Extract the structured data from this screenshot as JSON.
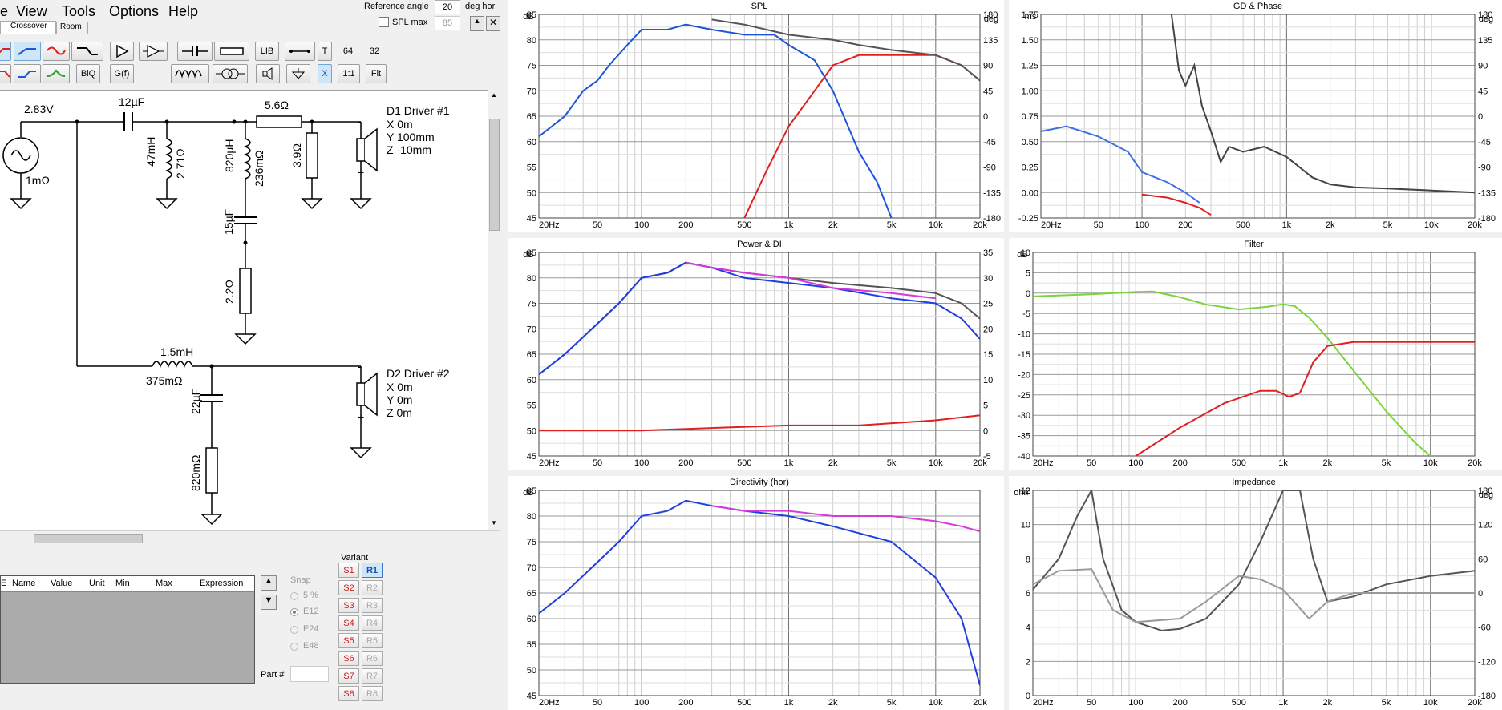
{
  "menu": {
    "items": [
      "e",
      "View",
      "Tools",
      "Options",
      "Help"
    ]
  },
  "reference": {
    "label": "Reference angle",
    "value": "20",
    "unit": "deg hor",
    "spl_max_label": "SPL max",
    "spl_max_value": "85"
  },
  "tabs": {
    "crossover": "Crossover",
    "room": "Room"
  },
  "toolbar": {
    "row1": [
      "",
      "",
      "",
      "",
      "",
      "",
      "",
      "",
      "LIB",
      "",
      "T",
      "64",
      "32"
    ],
    "row2": [
      "",
      "",
      "",
      "BiQ",
      "G(f)",
      "",
      "",
      "",
      "",
      "X",
      "1:1",
      "Fit"
    ]
  },
  "schematic": {
    "source_voltage": "2.83V",
    "source_resistance": "1mΩ",
    "c1": "12µF",
    "l_shunt": "47mH",
    "l_shunt_r": "2.71Ω",
    "r_series": "5.6Ω",
    "l_notch": "820µH",
    "l_notch_r": "236mΩ",
    "c_notch": "15µF",
    "r_notch": "2.2Ω",
    "r_shunt": "3.9Ω",
    "driver1": {
      "name": "D1 Driver #1",
      "x": "X 0m",
      "y": "Y 100mm",
      "z": "Z -10mm"
    },
    "l2": "1.5mH",
    "l2_r": "375mΩ",
    "c2": "22µF",
    "r2": "820mΩ",
    "driver2": {
      "name": "D2 Driver #2",
      "x": "X 0m",
      "y": "Y 0m",
      "z": "Z 0m"
    },
    "plus": "+",
    "minus": "-"
  },
  "param_table": {
    "columns": [
      "Name",
      "Value",
      "Unit",
      "Min",
      "Max",
      "Expression"
    ],
    "leading_col": "E"
  },
  "snap": {
    "label": "Snap",
    "options": [
      "5 %",
      "E12",
      "E24",
      "E48"
    ],
    "selected": "E12"
  },
  "part_label": "Part #",
  "variant": {
    "label": "Variant",
    "s": [
      "S1",
      "S2",
      "S3",
      "S4",
      "S5",
      "S6",
      "S7",
      "S8"
    ],
    "r": [
      "R1",
      "R2",
      "R3",
      "R4",
      "R5",
      "R6",
      "R7",
      "R8"
    ],
    "active_r": "R1"
  },
  "freq_ticks": [
    "20Hz",
    "50",
    "100",
    "200",
    "500",
    "1k",
    "2k",
    "5k",
    "10k",
    "20k"
  ],
  "charts": {
    "spl": {
      "title": "SPL",
      "ylabel_left": "dB",
      "ylabel_right": "deg",
      "yticks_left": [
        "85",
        "80",
        "75",
        "70",
        "65",
        "60",
        "55",
        "50",
        "45"
      ],
      "yticks_right": [
        "180",
        "135",
        "90",
        "45",
        "0",
        "-45",
        "-90",
        "-135",
        "-180"
      ]
    },
    "gd": {
      "title": "GD & Phase",
      "ylabel_left": "ms",
      "ylabel_right": "deg",
      "yticks_left": [
        "1.75",
        "1.50",
        "1.25",
        "1.00",
        "0.75",
        "0.50",
        "0.25",
        "0.00",
        "-0.25"
      ],
      "yticks_right": [
        "180",
        "135",
        "90",
        "45",
        "0",
        "-45",
        "-90",
        "-135",
        "-180"
      ]
    },
    "power": {
      "title": "Power & DI",
      "ylabel_left": "dB",
      "yticks_left": [
        "85",
        "80",
        "75",
        "70",
        "65",
        "60",
        "55",
        "50",
        "45"
      ],
      "yticks_right": [
        "35",
        "30",
        "25",
        "20",
        "15",
        "10",
        "5",
        "0",
        "-5"
      ]
    },
    "filter": {
      "title": "Filter",
      "ylabel_left": "dB",
      "yticks_left": [
        "10",
        "5",
        "0",
        "-5",
        "-10",
        "-15",
        "-20",
        "-25",
        "-30",
        "-35",
        "-40"
      ]
    },
    "directivity": {
      "title": "Directivity (hor)",
      "ylabel_left": "dB",
      "yticks_left": [
        "85",
        "80",
        "75",
        "70",
        "65",
        "60",
        "55",
        "50",
        "45"
      ]
    },
    "impedance": {
      "title": "Impedance",
      "ylabel_left": "ohm",
      "ylabel_right": "deg",
      "yticks_left": [
        "12",
        "10",
        "8",
        "6",
        "4",
        "2",
        "0"
      ],
      "yticks_right": [
        "180",
        "120",
        "60",
        "0",
        "-60",
        "-120",
        "-180"
      ]
    }
  },
  "chart_data": [
    {
      "type": "line",
      "title": "SPL",
      "xlabel": "",
      "ylabel": "dB",
      "xscale": "log",
      "xlim": [
        20,
        20000
      ],
      "ylim": [
        45,
        85
      ],
      "series": [
        {
          "color": "#1f55d8",
          "x": [
            20,
            30,
            40,
            50,
            60,
            80,
            100,
            150,
            200,
            300,
            500,
            800,
            1000,
            1500,
            2000,
            3000,
            4000,
            5000
          ],
          "y": [
            61,
            65,
            70,
            72,
            75,
            79,
            82,
            82,
            83,
            82,
            81,
            81,
            79,
            76,
            70,
            58,
            52,
            45
          ]
        },
        {
          "color": "#e02020",
          "x": [
            500,
            700,
            1000,
            1500,
            2000,
            3000,
            5000,
            7000,
            10000,
            15000,
            20000
          ],
          "y": [
            45,
            54,
            63,
            70,
            75,
            77,
            77,
            77,
            77,
            75,
            72
          ]
        },
        {
          "color": "#555555",
          "x": [
            300,
            500,
            1000,
            2000,
            3000,
            5000,
            10000,
            15000,
            20000
          ],
          "y": [
            84,
            83,
            81,
            80,
            79,
            78,
            77,
            75,
            72
          ]
        }
      ]
    },
    {
      "type": "line",
      "title": "Power & DI",
      "ylabel": "dB",
      "xscale": "log",
      "xlim": [
        20,
        20000
      ],
      "ylim": [
        45,
        85
      ],
      "series": [
        {
          "color": "#555555",
          "x": [
            20,
            30,
            50,
            70,
            100,
            150,
            200,
            300,
            500,
            1000,
            2000,
            5000,
            10000,
            15000,
            20000
          ],
          "y": [
            61,
            65,
            71,
            75,
            80,
            81,
            83,
            82,
            81,
            80,
            79,
            78,
            77,
            75,
            72
          ]
        },
        {
          "color": "#1f3fe0",
          "x": [
            20,
            30,
            50,
            70,
            100,
            150,
            200,
            300,
            500,
            1000,
            2000,
            5000,
            10000,
            15000,
            20000
          ],
          "y": [
            61,
            65,
            71,
            75,
            80,
            81,
            83,
            82,
            80,
            79,
            78,
            76,
            75,
            72,
            68
          ]
        },
        {
          "color": "#d63ad8",
          "x": [
            200,
            300,
            500,
            1000,
            2000,
            5000,
            10000
          ],
          "y": [
            83,
            82,
            81,
            80,
            78,
            77,
            76
          ]
        },
        {
          "color": "#e02020",
          "x": [
            20,
            100,
            300,
            1000,
            3000,
            10000,
            20000
          ],
          "y": [
            50,
            50,
            50.5,
            51,
            51,
            52,
            53
          ]
        }
      ]
    },
    {
      "type": "line",
      "title": "Directivity (hor)",
      "ylabel": "dB",
      "xscale": "log",
      "xlim": [
        20,
        20000
      ],
      "ylim": [
        45,
        85
      ],
      "series": [
        {
          "color": "#1f3fe0",
          "x": [
            20,
            30,
            50,
            70,
            100,
            150,
            200,
            300,
            500,
            1000,
            2000,
            5000,
            10000,
            15000,
            20000
          ],
          "y": [
            61,
            65,
            71,
            75,
            80,
            81,
            83,
            82,
            81,
            80,
            78,
            75,
            68,
            60,
            47
          ]
        },
        {
          "color": "#d63ad8",
          "x": [
            300,
            500,
            1000,
            2000,
            5000,
            10000,
            15000,
            20000
          ],
          "y": [
            82,
            81,
            81,
            80,
            80,
            79,
            78,
            77
          ]
        }
      ]
    },
    {
      "type": "line",
      "title": "Filter",
      "ylabel": "dB",
      "xscale": "log",
      "xlim": [
        20,
        20000
      ],
      "ylim": [
        -40,
        10
      ],
      "series": [
        {
          "color": "#7bd43b",
          "x": [
            20,
            50,
            100,
            130,
            200,
            300,
            500,
            800,
            1000,
            1200,
            1500,
            2000,
            3000,
            5000,
            8000,
            10000
          ],
          "y": [
            -0.8,
            -0.3,
            0.3,
            0.4,
            -1,
            -2.8,
            -4,
            -3.3,
            -2.7,
            -3.2,
            -6,
            -11,
            -19,
            -29,
            -37,
            -40
          ]
        },
        {
          "color": "#e02020",
          "x": [
            100,
            200,
            400,
            700,
            900,
            1100,
            1300,
            1600,
            2000,
            3000,
            5000,
            10000,
            20000
          ],
          "y": [
            -40,
            -33,
            -27,
            -24,
            -24,
            -25.5,
            -24.5,
            -17,
            -13,
            -12,
            -12,
            -12,
            -12
          ]
        }
      ]
    },
    {
      "type": "line",
      "title": "GD & Phase",
      "ylabel": "ms",
      "xscale": "log",
      "xlim": [
        20,
        20000
      ],
      "ylim": [
        -0.25,
        1.75
      ],
      "series": [
        {
          "color": "#444444",
          "x": [
            160,
            180,
            200,
            230,
            260,
            300,
            350,
            400,
            500,
            700,
            1000,
            1500,
            2000,
            3000,
            5000,
            10000,
            20000
          ],
          "y": [
            1.75,
            1.2,
            1.05,
            1.25,
            0.85,
            0.6,
            0.3,
            0.45,
            0.4,
            0.45,
            0.35,
            0.15,
            0.08,
            0.05,
            0.04,
            0.02,
            0.0
          ]
        },
        {
          "color": "#3f6fe0",
          "x": [
            20,
            30,
            50,
            80,
            100,
            150,
            200,
            250
          ],
          "y": [
            0.6,
            0.65,
            0.55,
            0.4,
            0.2,
            0.1,
            0.0,
            -0.1
          ]
        },
        {
          "color": "#e02020",
          "x": [
            100,
            150,
            200,
            250,
            300
          ],
          "y": [
            -0.02,
            -0.05,
            -0.1,
            -0.15,
            -0.22
          ]
        }
      ]
    },
    {
      "type": "line",
      "title": "Impedance",
      "ylabel": "ohm",
      "xscale": "log",
      "xlim": [
        20,
        20000
      ],
      "ylim": [
        0,
        12
      ],
      "series": [
        {
          "color": "#555555",
          "x": [
            20,
            30,
            40,
            50,
            60,
            80,
            100,
            150,
            200,
            300,
            500,
            700,
            1000,
            1300,
            1600,
            2000,
            3000,
            5000,
            10000,
            20000
          ],
          "y": [
            6.2,
            8,
            10.5,
            12,
            8,
            5,
            4.3,
            3.8,
            3.9,
            4.5,
            6.5,
            9,
            12,
            12,
            8,
            5.5,
            5.8,
            6.5,
            7,
            7.3
          ]
        },
        {
          "color": "#999999",
          "x": [
            20,
            30,
            50,
            70,
            100,
            200,
            300,
            500,
            700,
            1000,
            1500,
            2000,
            3000,
            20000
          ],
          "y": [
            6.5,
            7.3,
            7.4,
            5,
            4.3,
            4.5,
            5.5,
            7,
            6.8,
            6.2,
            4.5,
            5.5,
            6,
            6
          ]
        }
      ]
    }
  ]
}
